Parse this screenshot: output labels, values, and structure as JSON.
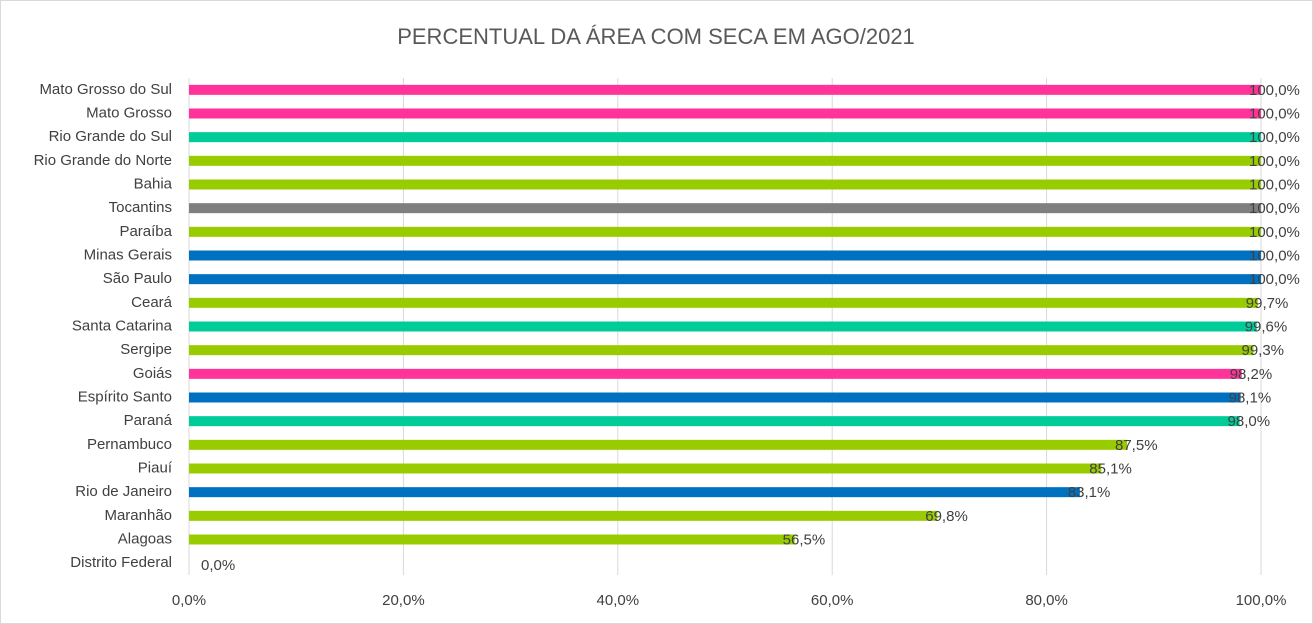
{
  "chart_data": {
    "type": "hbar",
    "title": "PERCENTUAL DA ÁREA COM SECA EM AGO/2021",
    "categories": [
      "Mato Grosso do Sul",
      "Mato Grosso",
      "Rio Grande do Sul",
      "Rio Grande do Norte",
      "Bahia",
      "Tocantins",
      "Paraíba",
      "Minas Gerais",
      "São Paulo",
      "Ceará",
      "Santa Catarina",
      "Sergipe",
      "Goiás",
      "Espírito Santo",
      "Paraná",
      "Pernambuco",
      "Piauí",
      "Rio de Janeiro",
      "Maranhão",
      "Alagoas",
      "Distrito Federal"
    ],
    "values": [
      100,
      100,
      100,
      100,
      100,
      100,
      100,
      100,
      100,
      99.7,
      99.6,
      99.3,
      98.2,
      98.1,
      98.0,
      87.5,
      85.1,
      83.1,
      69.8,
      56.5,
      0
    ],
    "value_labels": [
      "100,0%",
      "100,0%",
      "100,0%",
      "100,0%",
      "100,0%",
      "100,0%",
      "100,0%",
      "100,0%",
      "100,0%",
      "99,7%",
      "99,6%",
      "99,3%",
      "98,2%",
      "98,1%",
      "98,0%",
      "87,5%",
      "85,1%",
      "83,1%",
      "69,8%",
      "56,5%",
      "0,0%"
    ],
    "colors": [
      "#ff3399",
      "#ff3399",
      "#00cc99",
      "#99cc00",
      "#99cc00",
      "#7f7f7f",
      "#99cc00",
      "#0070c0",
      "#0070c0",
      "#99cc00",
      "#00cc99",
      "#99cc00",
      "#ff3399",
      "#0070c0",
      "#00cc99",
      "#99cc00",
      "#99cc00",
      "#0070c0",
      "#99cc00",
      "#99cc00",
      "#99cc00"
    ],
    "xlim": [
      0,
      100
    ],
    "xticks": [
      {
        "value": 0,
        "label": "0,0%"
      },
      {
        "value": 20,
        "label": "20,0%"
      },
      {
        "value": 40,
        "label": "40,0%"
      },
      {
        "value": 60,
        "label": "60,0%"
      },
      {
        "value": 80,
        "label": "80,0%"
      },
      {
        "value": 100,
        "label": "100,0%"
      }
    ],
    "grid": true
  }
}
